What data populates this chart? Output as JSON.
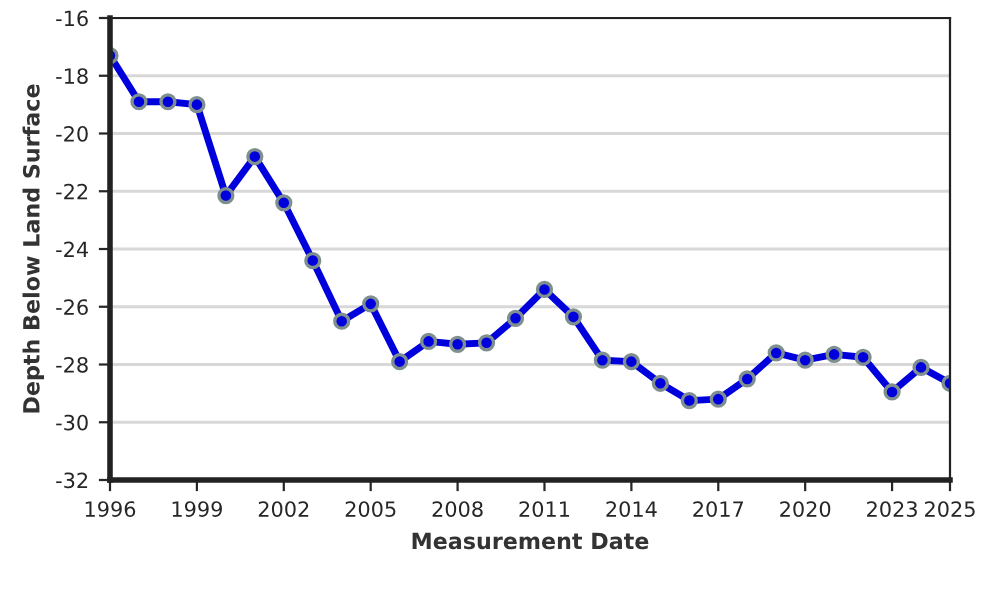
{
  "chart_data": {
    "type": "line",
    "xlabel": "Measurement Date",
    "ylabel": "Depth Below Land Surface",
    "x": [
      1996,
      1997,
      1998,
      1999,
      2000,
      2001,
      2002,
      2003,
      2004,
      2005,
      2006,
      2007,
      2008,
      2009,
      2010,
      2011,
      2012,
      2013,
      2014,
      2015,
      2016,
      2017,
      2018,
      2019,
      2020,
      2021,
      2022,
      2023,
      2024,
      2025
    ],
    "series": [
      {
        "color": "#0000dd",
        "values": [
          -17.3,
          -18.9,
          -18.9,
          -19.0,
          -22.15,
          -20.8,
          -22.4,
          -24.4,
          -26.5,
          -25.9,
          -27.9,
          -27.2,
          -27.3,
          -27.25,
          -26.4,
          -25.4,
          -26.35,
          -27.85,
          -27.9,
          -28.65,
          -29.25,
          -29.2,
          -28.5,
          -27.6,
          -27.85,
          -27.65,
          -27.75,
          -28.95,
          -28.1,
          -28.65
        ]
      }
    ],
    "xlim": [
      1996,
      2025
    ],
    "xticks": [
      1996,
      1999,
      2002,
      2005,
      2008,
      2011,
      2014,
      2017,
      2020,
      2023,
      2025
    ],
    "ylim": [
      -32,
      -16
    ],
    "yticks": [
      -32,
      -30,
      -28,
      -26,
      -24,
      -22,
      -20,
      -18,
      -16
    ],
    "grid": "y",
    "marker": "circle",
    "line_style": "solid"
  }
}
